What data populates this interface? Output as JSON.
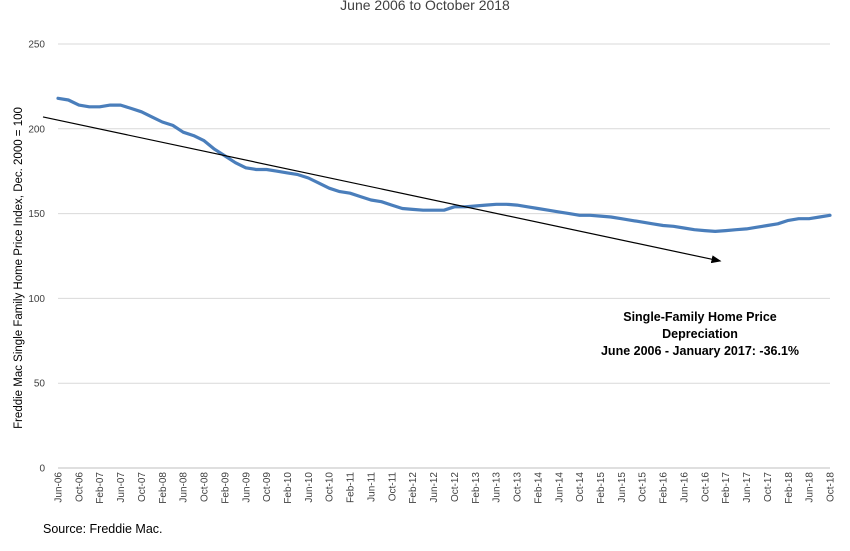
{
  "chart_data": {
    "type": "line",
    "subtitle": "June 2006 to October 2018",
    "ylabel": "Freddie Mac Single Family Home Price Index, Dec. 2000 = 100",
    "xlabel": "",
    "ylim": [
      0,
      250
    ],
    "yticks": [
      0,
      50,
      100,
      150,
      200,
      250
    ],
    "grid": true,
    "x_tick_labels": [
      "Jun-06",
      "Oct-06",
      "Feb-07",
      "Jun-07",
      "Oct-07",
      "Feb-08",
      "Jun-08",
      "Oct-08",
      "Feb-09",
      "Jun-09",
      "Oct-09",
      "Feb-10",
      "Jun-10",
      "Oct-10",
      "Feb-11",
      "Jun-11",
      "Oct-11",
      "Feb-12",
      "Jun-12",
      "Oct-12",
      "Feb-13",
      "Jun-13",
      "Oct-13",
      "Feb-14",
      "Jun-14",
      "Oct-14",
      "Feb-15",
      "Jun-15",
      "Oct-15",
      "Feb-16",
      "Jun-16",
      "Oct-16",
      "Feb-17",
      "Jun-17",
      "Oct-17",
      "Feb-18",
      "Jun-18",
      "Oct-18"
    ],
    "series": [
      {
        "color": "#4a7ebb",
        "points": [
          [
            "Jun-06",
            218
          ],
          [
            "Aug-06",
            217
          ],
          [
            "Oct-06",
            214
          ],
          [
            "Dec-06",
            213
          ],
          [
            "Feb-07",
            213
          ],
          [
            "Apr-07",
            214
          ],
          [
            "Jun-07",
            214
          ],
          [
            "Aug-07",
            212
          ],
          [
            "Oct-07",
            210
          ],
          [
            "Dec-07",
            207
          ],
          [
            "Feb-08",
            204
          ],
          [
            "Apr-08",
            202
          ],
          [
            "Jun-08",
            198
          ],
          [
            "Aug-08",
            196
          ],
          [
            "Oct-08",
            193
          ],
          [
            "Dec-08",
            188
          ],
          [
            "Feb-09",
            184
          ],
          [
            "Apr-09",
            180
          ],
          [
            "Jun-09",
            177
          ],
          [
            "Aug-09",
            176
          ],
          [
            "Oct-09",
            176
          ],
          [
            "Dec-09",
            175
          ],
          [
            "Feb-10",
            174
          ],
          [
            "Apr-10",
            173
          ],
          [
            "Jun-10",
            171
          ],
          [
            "Aug-10",
            168
          ],
          [
            "Oct-10",
            165
          ],
          [
            "Dec-10",
            163
          ],
          [
            "Feb-11",
            162
          ],
          [
            "Apr-11",
            160
          ],
          [
            "Jun-11",
            158
          ],
          [
            "Aug-11",
            157
          ],
          [
            "Oct-11",
            155
          ],
          [
            "Dec-11",
            153
          ],
          [
            "Feb-12",
            152.5
          ],
          [
            "Apr-12",
            152
          ],
          [
            "Jun-12",
            152
          ],
          [
            "Aug-12",
            152
          ],
          [
            "Oct-12",
            154
          ],
          [
            "Dec-12",
            154
          ],
          [
            "Feb-13",
            154.5
          ],
          [
            "Apr-13",
            155
          ],
          [
            "Jun-13",
            155.5
          ],
          [
            "Aug-13",
            155.5
          ],
          [
            "Oct-13",
            155
          ],
          [
            "Dec-13",
            154
          ],
          [
            "Feb-14",
            153
          ],
          [
            "Apr-14",
            152
          ],
          [
            "Jun-14",
            151
          ],
          [
            "Aug-14",
            150
          ],
          [
            "Oct-14",
            149
          ],
          [
            "Dec-14",
            149
          ],
          [
            "Feb-15",
            148.5
          ],
          [
            "Apr-15",
            148
          ],
          [
            "Jun-15",
            147
          ],
          [
            "Aug-15",
            146
          ],
          [
            "Oct-15",
            145
          ],
          [
            "Dec-15",
            144
          ],
          [
            "Feb-16",
            143
          ],
          [
            "Apr-16",
            142.5
          ],
          [
            "Jun-16",
            141.5
          ],
          [
            "Aug-16",
            140.5
          ],
          [
            "Oct-16",
            140
          ],
          [
            "Dec-16",
            139.5
          ],
          [
            "Feb-17",
            140
          ],
          [
            "Apr-17",
            140.5
          ],
          [
            "Jun-17",
            141
          ],
          [
            "Aug-17",
            142
          ],
          [
            "Oct-17",
            143
          ],
          [
            "Dec-17",
            144
          ],
          [
            "Feb-18",
            146
          ],
          [
            "Apr-18",
            147
          ],
          [
            "Jun-18",
            147
          ],
          [
            "Aug-18",
            148
          ],
          [
            "Oct-18",
            149
          ]
        ]
      }
    ],
    "trend_arrow": {
      "from": [
        "Jun-06",
        207
      ],
      "to": [
        "Jan-17",
        122
      ],
      "color": "#000000"
    },
    "annotation": {
      "line1": "Single-Family Home Price Depreciation",
      "line2": "June 2006 - January 2017: -36.1%"
    },
    "source": "Source: Freddie Mac."
  }
}
